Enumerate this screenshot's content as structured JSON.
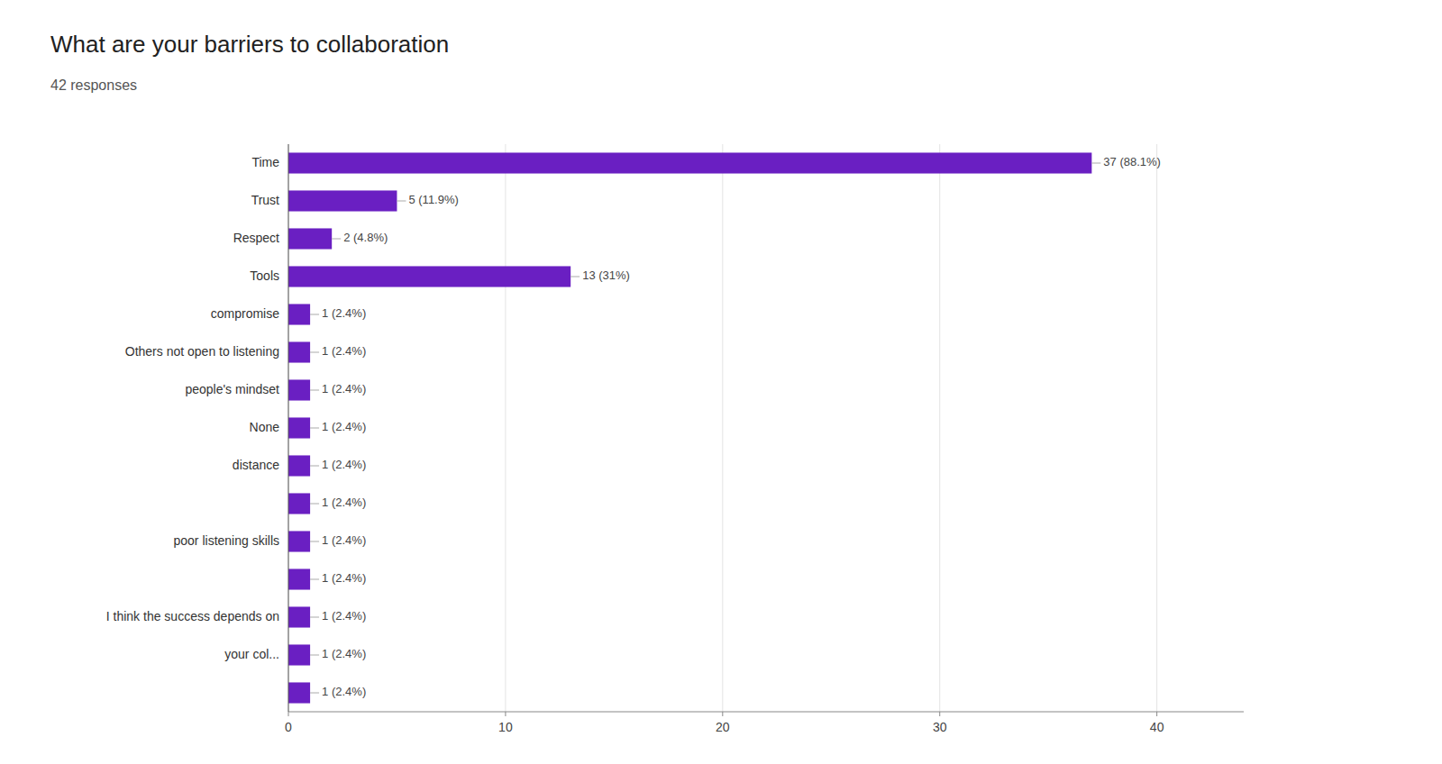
{
  "chart_data": {
    "type": "bar",
    "orientation": "horizontal",
    "title": "What are your barriers to collaboration",
    "subtitle": "42 responses",
    "categories": [
      "Time",
      "Trust",
      "Respect",
      "Tools",
      "compromise",
      "Others not open to listening",
      "people's mindset",
      "None",
      "distance",
      null,
      "poor listening skills",
      null,
      "I think the success depends on",
      "your col...",
      null
    ],
    "values": [
      37,
      5,
      2,
      13,
      1,
      1,
      1,
      1,
      1,
      1,
      1,
      1,
      1,
      1,
      1
    ],
    "value_labels": [
      "37 (88.1%)",
      "5 (11.9%)",
      "2 (4.8%)",
      "13 (31%)",
      "1 (2.4%)",
      "1 (2.4%)",
      "1 (2.4%)",
      "1 (2.4%)",
      "1 (2.4%)",
      "1 (2.4%)",
      "1 (2.4%)",
      "1 (2.4%)",
      "1 (2.4%)",
      "1 (2.4%)",
      "1 (2.4%)"
    ],
    "data_labels": true,
    "color": "#6a1fc2",
    "xlim": [
      0,
      44
    ],
    "xticks": [
      0,
      10,
      20,
      30,
      40
    ],
    "grid": true
  }
}
